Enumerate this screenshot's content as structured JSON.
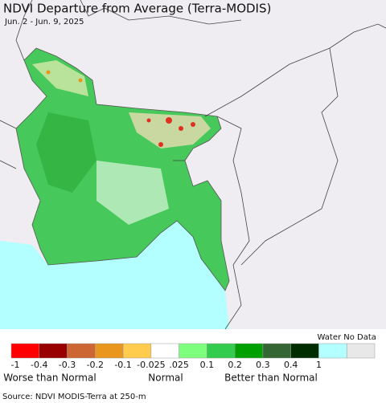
{
  "header": {
    "title": "NDVI Departure from Average (Terra-MODIS)",
    "subtitle": "Jun. 2 - Jun. 9, 2025"
  },
  "legend": {
    "heading": "Water No Data",
    "colors": [
      "#ff0000",
      "#990000",
      "#cc6633",
      "#e8961e",
      "#ffcc4d",
      "#ffffff",
      "#7dff7d",
      "#33cc4d",
      "#00a000",
      "#336633",
      "#002d00",
      "#b3ffff",
      "#e8e8e8"
    ],
    "ticks": [
      "-1",
      "-0.4",
      "-0.3",
      "-0.2",
      "-0.1",
      "-0.025",
      ".025",
      "0.1",
      "0.2",
      "0.3",
      "0.4",
      "1"
    ],
    "categories": [
      "Worse than Normal",
      "Normal",
      "Better than Normal"
    ]
  },
  "source": "Source: NDVI MODIS-Terra at 250-m"
}
